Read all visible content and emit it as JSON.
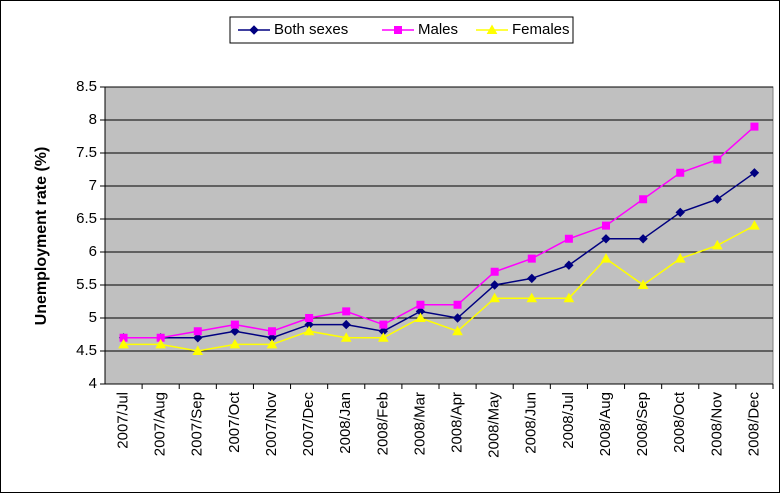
{
  "chart_data": {
    "type": "line",
    "y_label": "Unemployment rate (%)",
    "categories": [
      "2007/Jul",
      "2007/Aug",
      "2007/Sep",
      "2007/Oct",
      "2007/Nov",
      "2007/Dec",
      "2008/Jan",
      "2008/Feb",
      "2008/Mar",
      "2008/Apr",
      "2008/May",
      "2008/Jun",
      "2008/Jul",
      "2008/Aug",
      "2008/Sep",
      "2008/Oct",
      "2008/Nov",
      "2008/Dec"
    ],
    "series": [
      {
        "name": "Both sexes",
        "color": "#000080",
        "marker": "diamond",
        "values": [
          4.7,
          4.7,
          4.7,
          4.8,
          4.7,
          4.9,
          4.9,
          4.8,
          5.1,
          5.0,
          5.5,
          5.6,
          5.8,
          6.2,
          6.2,
          6.6,
          6.8,
          7.2
        ]
      },
      {
        "name": "Males",
        "color": "#ff00ff",
        "marker": "square",
        "values": [
          4.7,
          4.7,
          4.8,
          4.9,
          4.8,
          5.0,
          5.1,
          4.9,
          5.2,
          5.2,
          5.7,
          5.9,
          6.2,
          6.4,
          6.8,
          7.2,
          7.4,
          7.9
        ]
      },
      {
        "name": "Females",
        "color": "#ffff00",
        "marker": "triangle",
        "values": [
          4.6,
          4.6,
          4.5,
          4.6,
          4.6,
          4.8,
          4.7,
          4.7,
          5.0,
          4.8,
          5.3,
          5.3,
          5.3,
          5.9,
          5.5,
          5.9,
          6.1,
          6.4
        ]
      }
    ],
    "ylim": [
      4,
      8.5
    ],
    "yticks": [
      4,
      4.5,
      5,
      5.5,
      6,
      6.5,
      7,
      7.5,
      8,
      8.5
    ],
    "grid": true,
    "legend": "top",
    "plot_background": "#c0c0c0"
  }
}
